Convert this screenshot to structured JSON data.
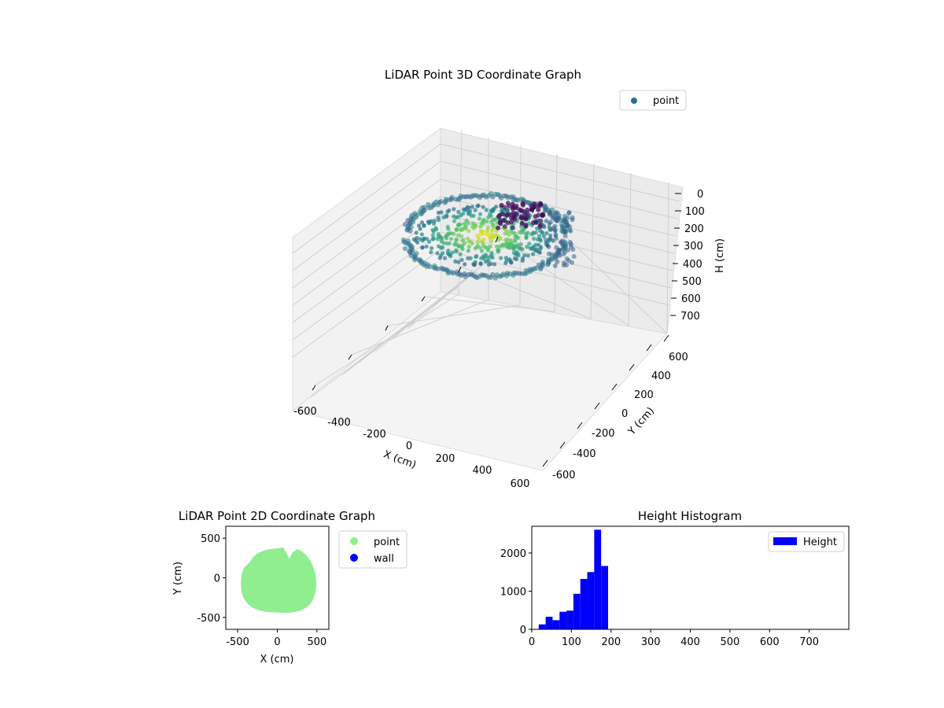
{
  "chart_data": [
    {
      "type": "scatter",
      "title": "LiDAR Point 3D Coordinate Graph",
      "xlabel": "X (cm)",
      "ylabel": "Y (cm)",
      "zlabel": "H (cm)",
      "x_ticks": [
        -600,
        -400,
        -200,
        0,
        200,
        400,
        600
      ],
      "y_ticks": [
        600,
        400,
        200,
        0,
        -200,
        -400,
        -600
      ],
      "z_ticks": [
        0,
        100,
        200,
        300,
        400,
        500,
        600,
        700
      ],
      "z_inverted": true,
      "colormap": "viridis",
      "legend": {
        "placement": "top-right",
        "entries": [
          {
            "label": "point",
            "color": "#2f6e8e"
          }
        ]
      },
      "grid": true
    },
    {
      "type": "scatter",
      "title": "LiDAR Point 2D Coordinate Graph",
      "xlabel": "X (cm)",
      "ylabel": "Y (cm)",
      "xlim": [
        -650,
        650
      ],
      "ylim": [
        -650,
        650
      ],
      "x_ticks": [
        -500,
        0,
        500
      ],
      "y_ticks": [
        500,
        0,
        -500
      ],
      "series": [
        {
          "name": "point",
          "color": "#90ee90"
        },
        {
          "name": "wall",
          "color": "#0000ff"
        }
      ],
      "legend": {
        "placement": "outside-right"
      }
    },
    {
      "type": "bar",
      "title": "Height Histogram",
      "xlim": [
        0,
        800
      ],
      "ylim": [
        0,
        2700
      ],
      "x_ticks": [
        0,
        100,
        200,
        300,
        400,
        500,
        600,
        700
      ],
      "y_ticks": [
        0,
        1000,
        2000
      ],
      "bin_width": 17.5,
      "bins": [
        {
          "x0": 17.5,
          "count": 130
        },
        {
          "x0": 35,
          "count": 330
        },
        {
          "x0": 52.5,
          "count": 240
        },
        {
          "x0": 70,
          "count": 460
        },
        {
          "x0": 87.5,
          "count": 490
        },
        {
          "x0": 105,
          "count": 930
        },
        {
          "x0": 122.5,
          "count": 1320
        },
        {
          "x0": 140,
          "count": 1500
        },
        {
          "x0": 157.5,
          "count": 2610
        },
        {
          "x0": 175,
          "count": 1660
        }
      ],
      "series": [
        {
          "name": "Height",
          "color": "#0000ff"
        }
      ],
      "legend": {
        "placement": "top-right"
      }
    }
  ]
}
